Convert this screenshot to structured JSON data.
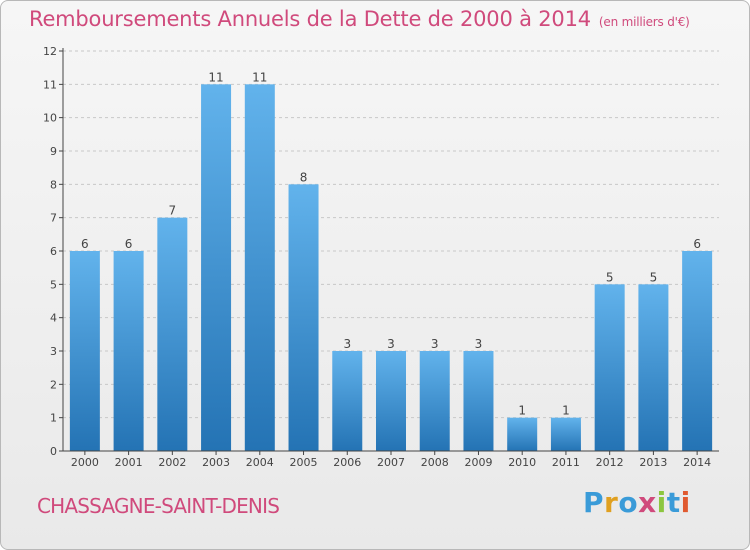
{
  "header": {
    "title": "Remboursements Annuels de la Dette de 2000 à 2014",
    "unit": "(en milliers d'€)"
  },
  "footer": {
    "commune": "CHASSAGNE-SAINT-DENIS",
    "logo_text": "Proxiti"
  },
  "colors": {
    "bar_top": "#62b3ec",
    "bar_bottom": "#2473b4",
    "title": "#d04a7c",
    "axis": "#444444",
    "grid": "#c8c8c8"
  },
  "chart_data": {
    "type": "bar",
    "title": "Remboursements Annuels de la Dette de 2000 à 2014",
    "subtitle": "(en milliers d'€)",
    "xlabel": "",
    "ylabel": "",
    "categories": [
      "2000",
      "2001",
      "2002",
      "2003",
      "2004",
      "2005",
      "2006",
      "2007",
      "2008",
      "2009",
      "2010",
      "2011",
      "2012",
      "2013",
      "2014"
    ],
    "values": [
      6,
      6,
      7,
      11,
      11,
      8,
      3,
      3,
      3,
      3,
      1,
      1,
      5,
      5,
      6
    ],
    "ylim": [
      0,
      12
    ],
    "yticks": [
      0,
      1,
      2,
      3,
      4,
      5,
      6,
      7,
      8,
      9,
      10,
      11,
      12
    ],
    "grid": true,
    "data_labels": true
  }
}
